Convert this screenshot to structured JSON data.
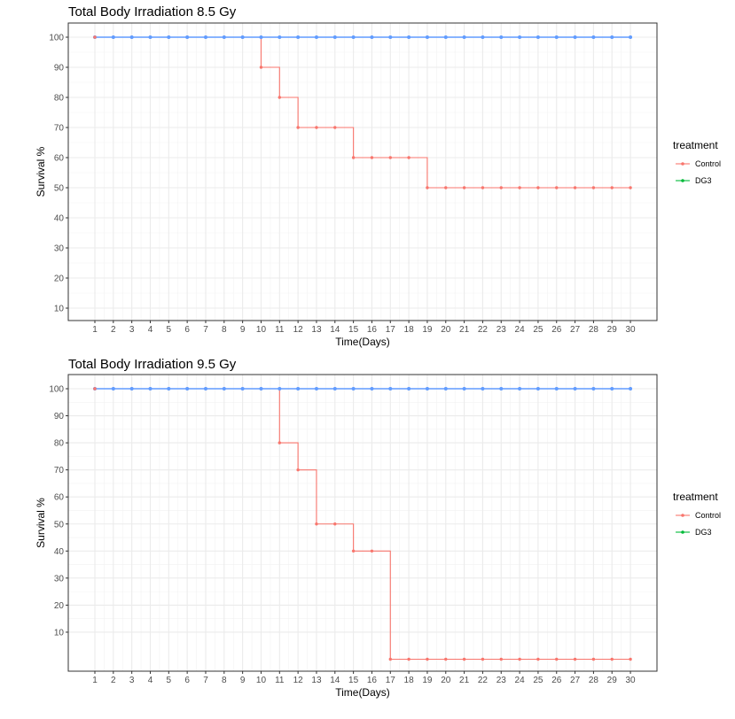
{
  "chart_data": [
    {
      "type": "line",
      "title": "Total Body Irradiation 8.5 Gy",
      "xlabel": "Time(Days)",
      "ylabel": "Survival %",
      "xlim": [
        1,
        30
      ],
      "ylim": [
        10,
        100
      ],
      "x": [
        1,
        2,
        3,
        4,
        5,
        6,
        7,
        8,
        9,
        10,
        11,
        12,
        13,
        14,
        15,
        16,
        17,
        18,
        19,
        20,
        21,
        22,
        23,
        24,
        25,
        26,
        27,
        28,
        29,
        30
      ],
      "x_ticks": [
        "1",
        "2",
        "3",
        "4",
        "5",
        "6",
        "7",
        "8",
        "9",
        "10",
        "11",
        "12",
        "13",
        "14",
        "15",
        "16",
        "17",
        "18",
        "19",
        "20",
        "21",
        "22",
        "23",
        "24",
        "25",
        "26",
        "27",
        "28",
        "29",
        "30"
      ],
      "y_ticks": [
        "10",
        "20",
        "30",
        "40",
        "50",
        "60",
        "70",
        "80",
        "90",
        "100"
      ],
      "step": true,
      "grid": true,
      "legend_title": "treatment",
      "legend_position": "right",
      "series": [
        {
          "name": "Control",
          "color": "#f8766d",
          "values": [
            100,
            100,
            100,
            100,
            100,
            100,
            100,
            100,
            100,
            90,
            80,
            70,
            70,
            70,
            60,
            60,
            60,
            60,
            50,
            50,
            50,
            50,
            50,
            50,
            50,
            50,
            50,
            50,
            50,
            50
          ]
        },
        {
          "name": "DG3",
          "color": "#00ba38",
          "values": [
            100,
            100,
            100,
            100,
            100,
            100,
            100,
            100,
            100,
            100,
            100,
            100,
            100,
            100,
            100,
            100,
            100,
            100,
            100,
            100,
            100,
            100,
            100,
            100,
            100,
            100,
            100,
            100,
            100,
            100
          ]
        }
      ],
      "overlay_line_color": "#619cff"
    },
    {
      "type": "line",
      "title": "Total Body Irradiation 9.5 Gy",
      "xlabel": "Time(Days)",
      "ylabel": "Survival %",
      "xlim": [
        1,
        30
      ],
      "ylim": [
        0,
        100
      ],
      "x": [
        1,
        2,
        3,
        4,
        5,
        6,
        7,
        8,
        9,
        10,
        11,
        12,
        13,
        14,
        15,
        16,
        17,
        18,
        19,
        20,
        21,
        22,
        23,
        24,
        25,
        26,
        27,
        28,
        29,
        30
      ],
      "x_ticks": [
        "1",
        "2",
        "3",
        "4",
        "5",
        "6",
        "7",
        "8",
        "9",
        "10",
        "11",
        "12",
        "13",
        "14",
        "15",
        "16",
        "17",
        "18",
        "19",
        "20",
        "21",
        "22",
        "23",
        "24",
        "25",
        "26",
        "27",
        "28",
        "29",
        "30"
      ],
      "y_ticks": [
        "10",
        "20",
        "30",
        "40",
        "50",
        "60",
        "70",
        "80",
        "90",
        "100"
      ],
      "step": true,
      "grid": true,
      "legend_title": "treatment",
      "legend_position": "right",
      "series": [
        {
          "name": "Control",
          "color": "#f8766d",
          "values": [
            100,
            100,
            100,
            100,
            100,
            100,
            100,
            100,
            100,
            100,
            80,
            70,
            50,
            50,
            40,
            40,
            0,
            0,
            0,
            0,
            0,
            0,
            0,
            0,
            0,
            0,
            0,
            0,
            0,
            0
          ]
        },
        {
          "name": "DG3",
          "color": "#00ba38",
          "values": [
            100,
            100,
            100,
            100,
            100,
            100,
            100,
            100,
            100,
            100,
            100,
            100,
            100,
            100,
            100,
            100,
            100,
            100,
            100,
            100,
            100,
            100,
            100,
            100,
            100,
            100,
            100,
            100,
            100,
            100
          ]
        }
      ],
      "overlay_line_color": "#619cff"
    }
  ]
}
